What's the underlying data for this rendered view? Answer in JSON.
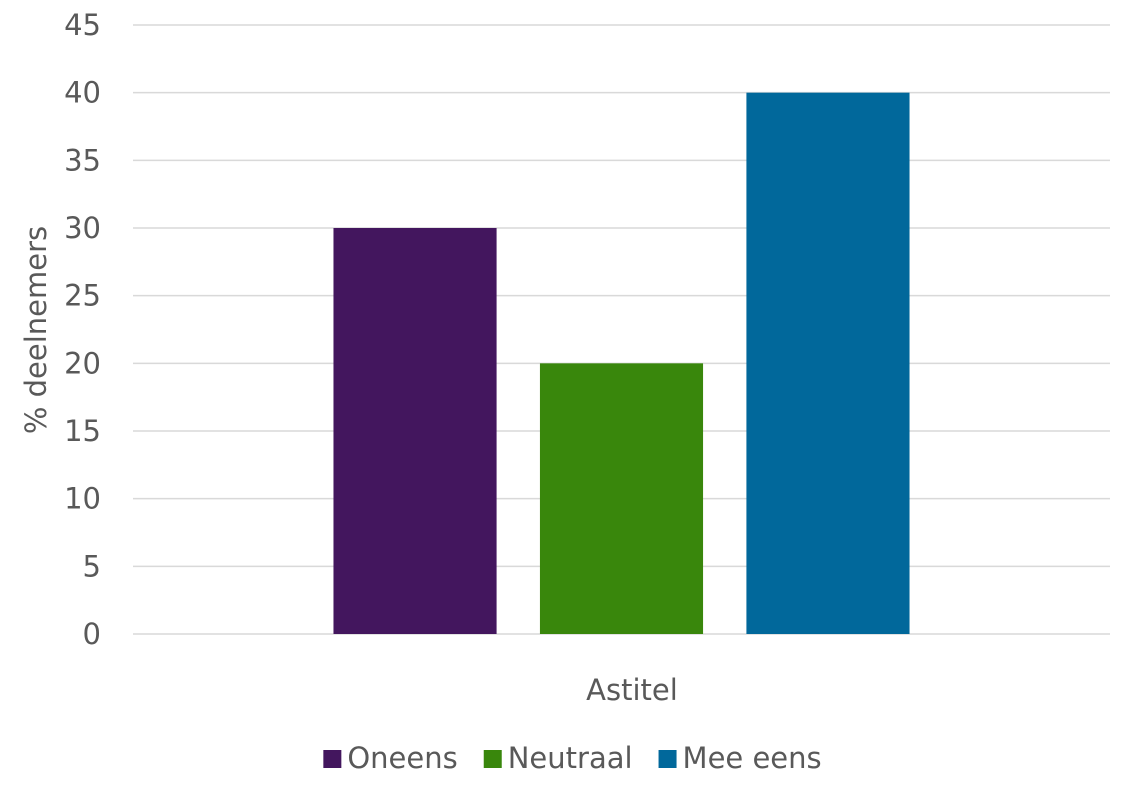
{
  "chart_data": {
    "type": "bar",
    "categories": [
      "Astitel"
    ],
    "series": [
      {
        "name": "Oneens",
        "values": [
          30
        ],
        "color": "#43165e"
      },
      {
        "name": "Neutraal",
        "values": [
          20
        ],
        "color": "#39870c"
      },
      {
        "name": "Mee eens",
        "values": [
          40
        ],
        "color": "#01689b"
      }
    ],
    "title": "",
    "xlabel": "Astitel",
    "ylabel": "% deelnemers",
    "ylim": [
      0,
      45
    ],
    "yticks": [
      0,
      5,
      10,
      15,
      20,
      25,
      30,
      35,
      40,
      45
    ],
    "grid": true,
    "legend_position": "bottom"
  }
}
